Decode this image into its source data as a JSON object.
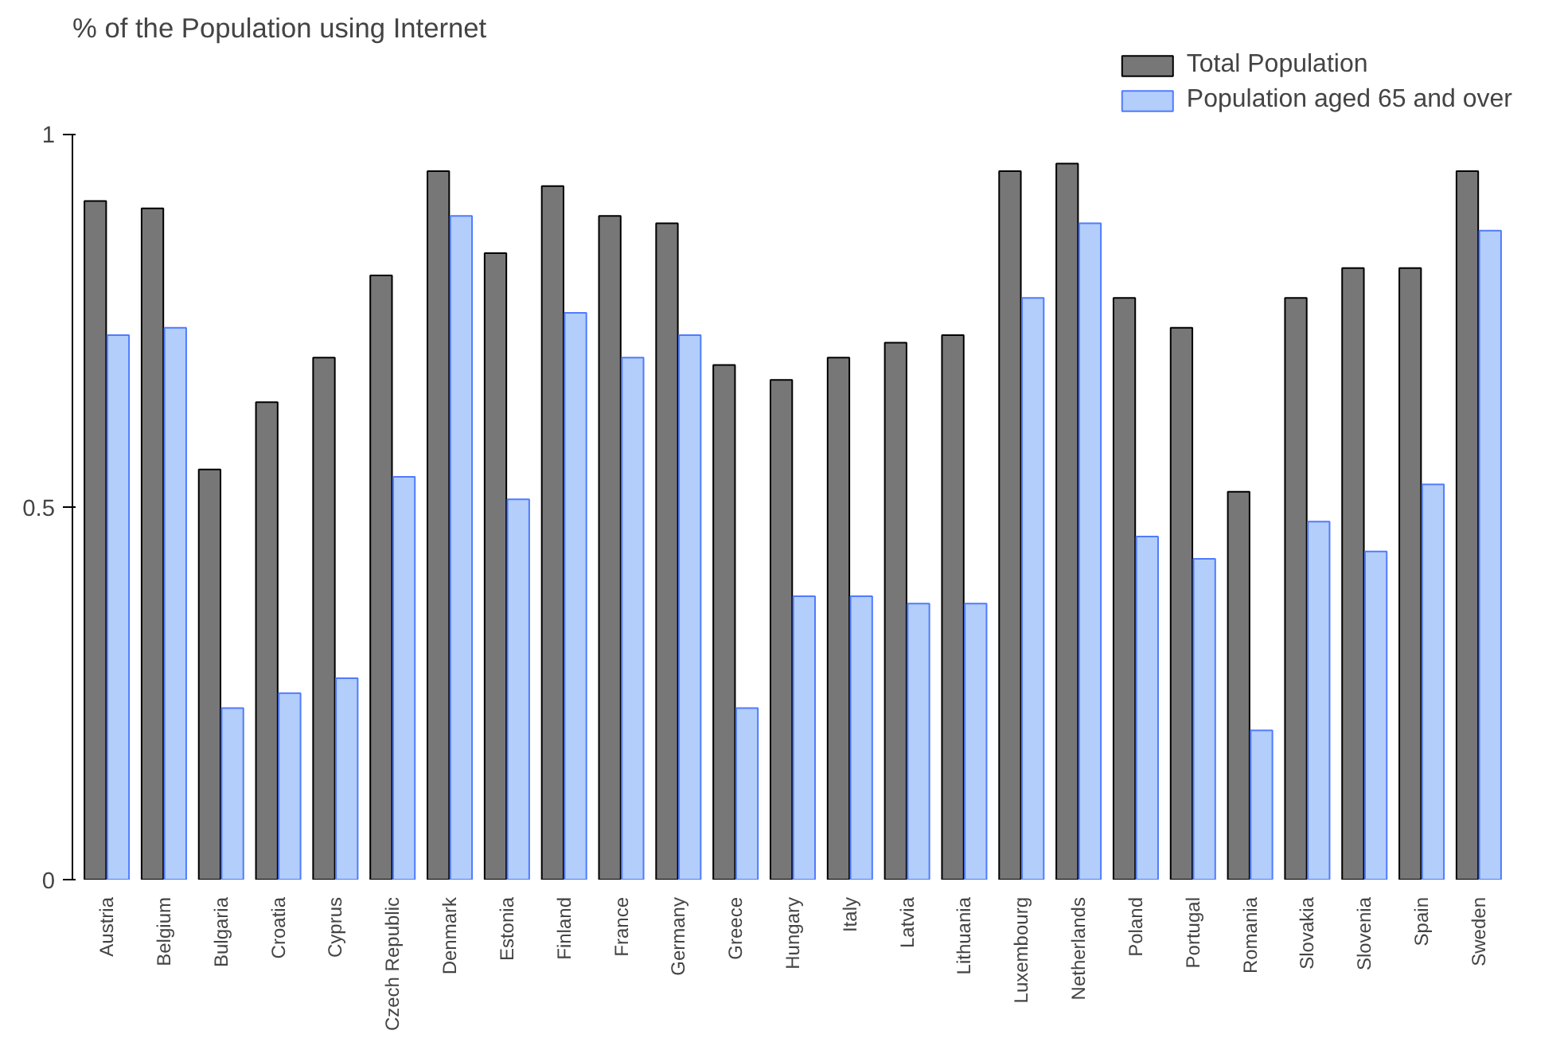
{
  "chart_data": {
    "type": "bar",
    "title": "% of the Population using Internet",
    "categories": [
      "Austria",
      "Belgium",
      "Bulgaria",
      "Croatia",
      "Cyprus",
      "Czech Republic",
      "Denmark",
      "Estonia",
      "Finland",
      "France",
      "Germany",
      "Greece",
      "Hungary",
      "Italy",
      "Latvia",
      "Lithuania",
      "Luxembourg",
      "Netherlands",
      "Poland",
      "Portugal",
      "Romania",
      "Slovakia",
      "Slovenia",
      "Spain",
      "Sweden"
    ],
    "series": [
      {
        "name": "Total Population",
        "color": "#777777",
        "values": [
          0.91,
          0.9,
          0.55,
          0.64,
          0.7,
          0.81,
          0.95,
          0.84,
          0.93,
          0.89,
          0.88,
          0.69,
          0.67,
          0.7,
          0.72,
          0.73,
          0.95,
          0.96,
          0.78,
          0.74,
          0.52,
          0.78,
          0.82,
          0.82,
          0.95
        ]
      },
      {
        "name": "Population aged 65 and over",
        "color": "#b3cefb",
        "values": [
          0.73,
          0.74,
          0.23,
          0.25,
          0.27,
          0.54,
          0.89,
          0.51,
          0.76,
          0.7,
          0.73,
          0.23,
          0.38,
          0.38,
          0.37,
          0.37,
          0.78,
          0.88,
          0.46,
          0.43,
          0.2,
          0.48,
          0.44,
          0.53,
          0.87
        ]
      }
    ],
    "ylim": [
      0,
      1
    ],
    "yticks": [
      0,
      0.5,
      1
    ],
    "legend": "top right"
  }
}
